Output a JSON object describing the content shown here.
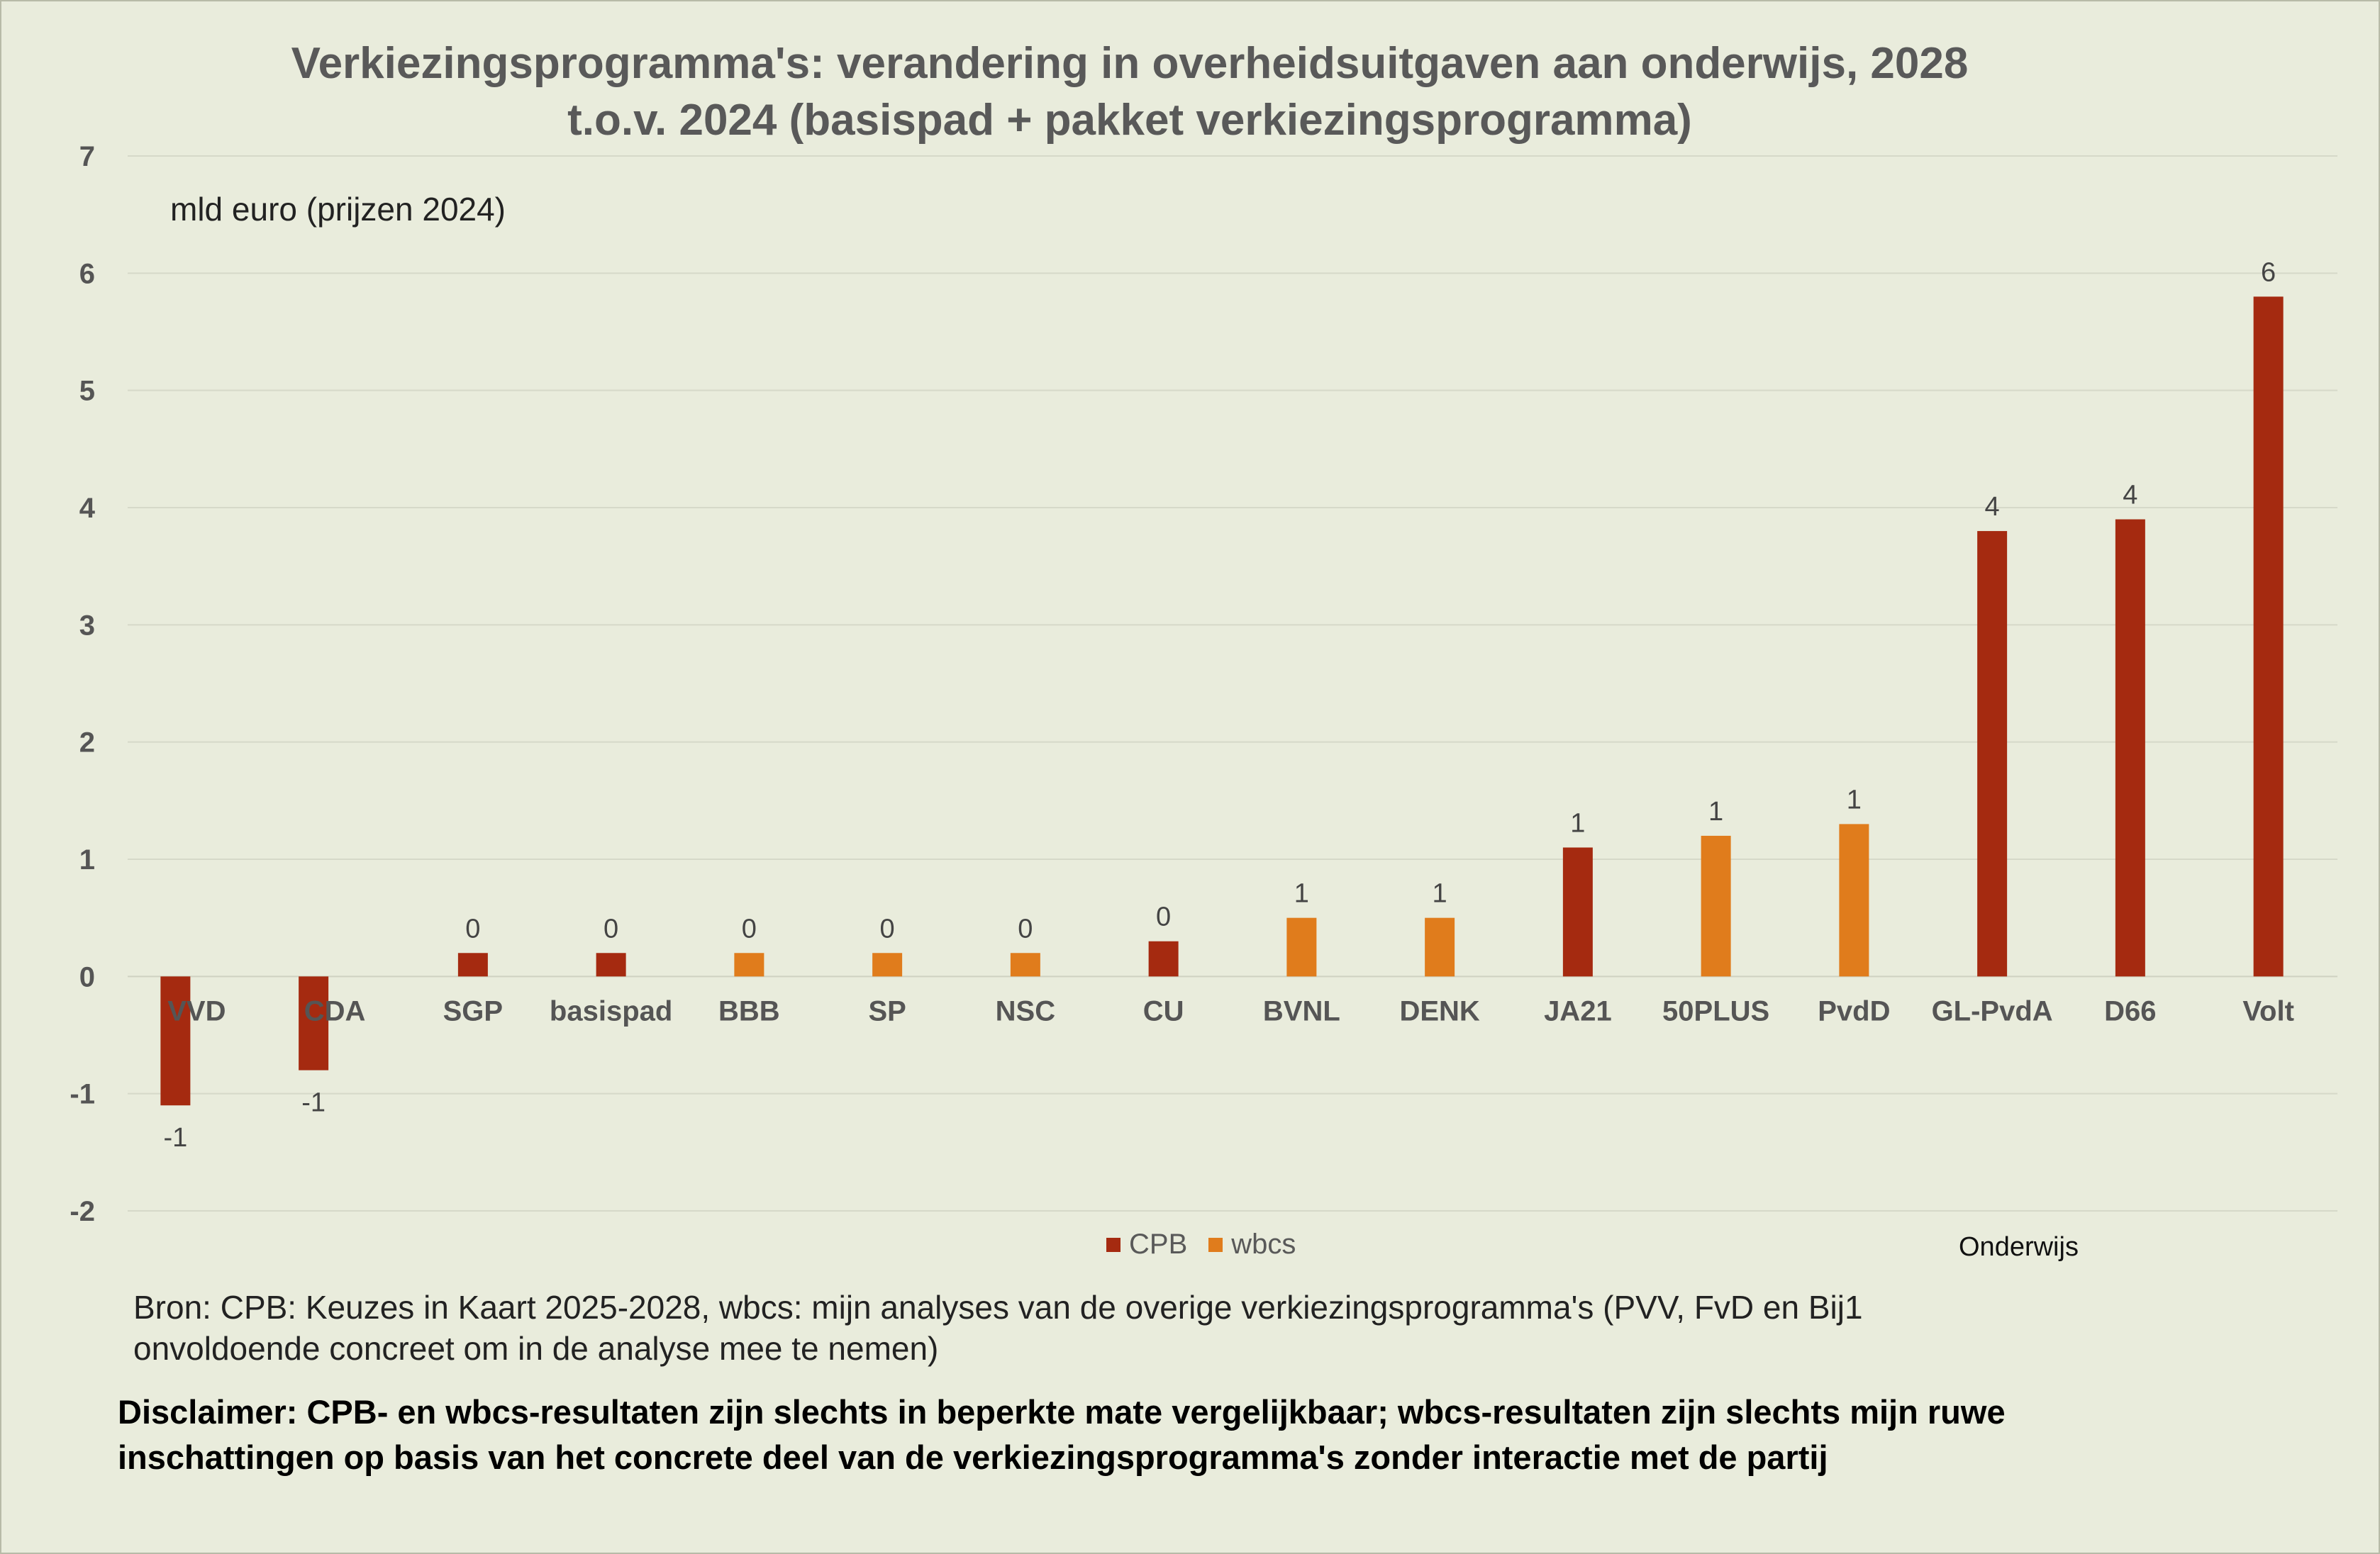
{
  "chart_data": {
    "type": "bar",
    "title_lines": [
      "Verkiezingsprogramma's: verandering in overheidsuitgaven aan  onderwijs, 2028",
      "t.o.v. 2024 (basispad + pakket verkiezingsprogramma)"
    ],
    "ylabel": "mld euro (prijzen 2024)",
    "ylim": [
      -2,
      7
    ],
    "yticks": [
      "7",
      "6",
      "5",
      "4",
      "3",
      "2",
      "1",
      "0",
      "-1",
      "-2"
    ],
    "ytick_values": [
      7,
      6,
      5,
      4,
      3,
      2,
      1,
      0,
      -1,
      -2
    ],
    "categories": [
      "VVD",
      "CDA",
      "SGP",
      "basispad",
      "BBB",
      "SP",
      "NSC",
      "CU",
      "BVNL",
      "DENK",
      "JA21",
      "50PLUS",
      "PvdD",
      "GL-PvdA",
      "D66",
      "Volt"
    ],
    "series": [
      {
        "name": "CPB",
        "color": "#a52a10",
        "values": [
          -1.1,
          -0.8,
          0.2,
          0.2,
          null,
          null,
          null,
          0.3,
          null,
          null,
          1.1,
          null,
          null,
          3.8,
          3.9,
          5.8
        ],
        "labels": [
          "-1",
          "-1",
          "0",
          "0",
          null,
          null,
          null,
          "0",
          null,
          null,
          "1",
          null,
          null,
          "4",
          "4",
          "6"
        ]
      },
      {
        "name": "wbcs",
        "color": "#e07c1c",
        "values": [
          null,
          null,
          null,
          null,
          0.2,
          0.2,
          0.2,
          null,
          0.5,
          0.5,
          null,
          1.2,
          1.3,
          null,
          null,
          null
        ],
        "labels": [
          null,
          null,
          null,
          null,
          "0",
          "0",
          "0",
          null,
          "1",
          "1",
          null,
          "1",
          "1",
          null,
          null,
          null
        ]
      }
    ],
    "legend": [
      "CPB",
      "wbcs"
    ],
    "section_label": "Onderwijs"
  },
  "footer": {
    "source_line1": "Bron: CPB: Keuzes in Kaart 2025-2028, wbcs: mijn analyses van de overige verkiezingsprogramma's (PVV, FvD en Bij1",
    "source_line2": "onvoldoende concreet om in de analyse mee te nemen)",
    "disclaimer_line1": "Disclaimer: CPB- en wbcs-resultaten zijn slechts in beperkte mate vergelijkbaar; wbcs-resultaten zijn slechts mijn ruwe",
    "disclaimer_line2": "inschattingen op basis van het concrete deel van de verkiezingsprogramma's zonder interactie met de partij"
  }
}
